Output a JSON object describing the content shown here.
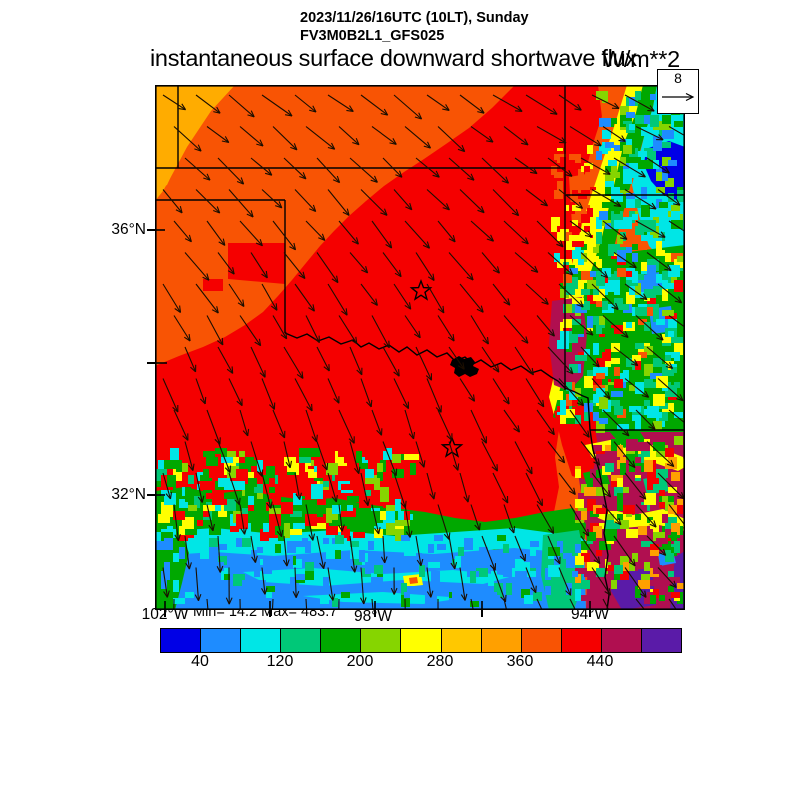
{
  "header": {
    "datetime_line": "2023/11/26/16UTC (10LT), Sunday",
    "model_line": "FV3M0B2L1_GFS025",
    "title": "instantaneous surface downward shortwave flux",
    "units": "W/m**2"
  },
  "map": {
    "min_max_label": "Min= 14.2 Max= 483.7",
    "lat_labels": [
      "36°N",
      "32°N"
    ],
    "lon_labels": [
      "102°W",
      "98°W",
      "94°W"
    ],
    "reference_vector_value": "8"
  },
  "colorbar": {
    "tick_labels": [
      "40",
      "120",
      "200",
      "280",
      "360",
      "440"
    ],
    "levels": [
      0,
      40,
      80,
      120,
      160,
      200,
      240,
      280,
      320,
      360,
      400,
      440,
      480,
      520
    ],
    "colors": [
      "#0000E6",
      "#1E8CFF",
      "#00E6E6",
      "#00C878",
      "#00A800",
      "#86D500",
      "#FFFF00",
      "#FFC800",
      "#FFA000",
      "#F85404",
      "#F50000",
      "#B00F50",
      "#5A1BA8"
    ]
  },
  "chart_data": {
    "type": "heatmap",
    "title": "instantaneous surface downward shortwave flux",
    "units": "W/m**2",
    "valid_time": "2023/11/26/16UTC (10LT), Sunday",
    "model": "FV3M0B2L1_GFS025",
    "min": 14.2,
    "max": 483.7,
    "levels": [
      0,
      40,
      80,
      120,
      160,
      200,
      240,
      280,
      320,
      360,
      400,
      440,
      480,
      520
    ],
    "palette": [
      "#0000E6",
      "#1E8CFF",
      "#00E6E6",
      "#00C878",
      "#00A800",
      "#86D500",
      "#FFFF00",
      "#FFC800",
      "#FFA000",
      "#F85404",
      "#F50000",
      "#B00F50",
      "#5A1BA8"
    ],
    "colorbar_tick_labels": [
      40,
      120,
      200,
      280,
      360,
      440
    ],
    "lat_ticks": [
      "36°N",
      "34°N (unlabeled)",
      "32°N"
    ],
    "lon_ticks": [
      "102°W",
      "100°W (unlabeled)",
      "98°W",
      "96°W (unlabeled)",
      "94°W"
    ],
    "wind_reference_vector": 8,
    "wind_field": "arrows pointing SE in the north rotating to nearly due S in the south; ESE in the northeast corner",
    "overlays": [
      "state borders (OK, KS, TX, MO, AR panhandle region)",
      "Red River boundary",
      "lake (Lake Texoma) blob",
      "two star city markers"
    ],
    "regions": [
      {
        "area": "northwest / Texas-Oklahoma panhandles",
        "value_range": "360-400 (orange), 320-360 gold patch in far NW corner"
      },
      {
        "area": "central Oklahoma and north-central Texas",
        "value_range": "400-440 (red core of clear-sky flux)"
      },
      {
        "area": "northeast corner (SE Kansas / Missouri)",
        "value_range": "0-160 (blue/cyan/green cloud shield)"
      },
      {
        "area": "eastern Oklahoma border zone",
        "value_range": "mixed 80-280 speckled green/cyan/yellow with 440-480 maroon pockets"
      },
      {
        "area": "southeast (Arkansas / Louisiana / east Texas)",
        "value_range": "440-480 maroon with 480+ purple blobs and yellow/green channels"
      },
      {
        "area": "south-central Texas band",
        "value_range": "40-120 (dodger blue / cyan cloud band) edged by 160-240 greens"
      }
    ]
  }
}
